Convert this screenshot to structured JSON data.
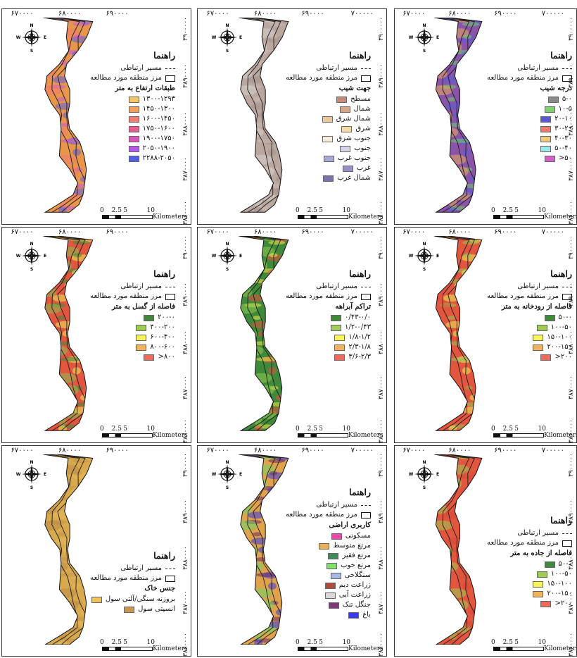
{
  "common": {
    "legend_title": "راهنما",
    "road_label": "مسیر ارتباطی",
    "boundary_label": "مرز منطقه مورد مطالعه",
    "compass": {
      "n": "N",
      "s": "S",
      "e": "E",
      "w": "W"
    },
    "scale": {
      "t0": "0",
      "t1": "2.5",
      "t2": "5",
      "t3": "10",
      "unit": "Kilometers"
    },
    "x_ticks": [
      "۶۷۰۰۰۰",
      "۶۸۰۰۰۰",
      "۶۹۰۰۰۰",
      "۷۰۰۰۰۰"
    ],
    "y_ticks": [
      "۳۹۰۰۰۰۰",
      "۳۸۹۰۰۰۰",
      "۳۸۸۰۰۰۰",
      "۳۸۷۰۰۰۰",
      "۳۸۶۰۰۰۰"
    ]
  },
  "panels": [
    {
      "id": "elevation",
      "subtitle": "طبقات ارتفاع به متر",
      "fill": "#e8964a",
      "accents": [
        "#c85bd6",
        "#5b5fe0",
        "#f07b70"
      ],
      "items": [
        {
          "label": "۱۳۰۰-۱۲۹۳",
          "color": "#f6c567"
        },
        {
          "label": "۱۴۵۰-۱۳۰۰",
          "color": "#f2a15c"
        },
        {
          "label": "۱۶۰۰-۱۴۵۰",
          "color": "#ef7e74"
        },
        {
          "label": "۱۷۵۰-۱۶۰۰",
          "color": "#e55d8f"
        },
        {
          "label": "۱۹۰۰-۱۷۵۰",
          "color": "#d756b8"
        },
        {
          "label": "۲۰۵۰-۱۹۰۰",
          "color": "#b45ce0"
        },
        {
          "label": "۲۲۸۸-۲۰۵۰",
          "color": "#5460e4"
        }
      ]
    },
    {
      "id": "aspect",
      "subtitle": "جهت شیب",
      "fill": "#b9a7a0",
      "accents": [
        "#cdbcb3",
        "#a4918a",
        "#d8cec8"
      ],
      "items": [
        {
          "label": "مسطح",
          "color": "#c8887a"
        },
        {
          "label": "شمال",
          "color": "#d7a68a"
        },
        {
          "label": "شمال شرق",
          "color": "#e9c89a"
        },
        {
          "label": "شرق",
          "color": "#f3dba8"
        },
        {
          "label": "جنوب شرق",
          "color": "#f6ecd8"
        },
        {
          "label": "جنوب",
          "color": "#d8d3e6"
        },
        {
          "label": "جنوب غرب",
          "color": "#a9a9d8"
        },
        {
          "label": "غرب",
          "color": "#9490c8"
        },
        {
          "label": "شمال غرب",
          "color": "#7c70a8"
        }
      ]
    },
    {
      "id": "slope",
      "subtitle": "درجه شیب",
      "fill": "#8a55a8",
      "accents": [
        "#6fcf6a",
        "#5a5fd6",
        "#e8a95a"
      ],
      "items": [
        {
          "label": "۵-۰",
          "color": "#8a8a8a"
        },
        {
          "label": "۱۰-۵",
          "color": "#7ed36a"
        },
        {
          "label": "۲۰-۱۰",
          "color": "#5a58d8"
        },
        {
          "label": "۳۰-۲۰",
          "color": "#ef7a6a"
        },
        {
          "label": "۴۰-۳۰",
          "color": "#f0c87a"
        },
        {
          "label": "۵۰-۴۰",
          "color": "#9be8ef"
        },
        {
          "label": "۵۰<",
          "color": "#d65fc9"
        }
      ]
    },
    {
      "id": "fault",
      "subtitle": "فاصله از گسل به متر",
      "fill": "#e2553e",
      "accents": [
        "#3a8a3a",
        "#e9ef5a",
        "#88c050"
      ],
      "items": [
        {
          "label": "۲۰۰-۰",
          "color": "#3e8a3a"
        },
        {
          "label": "۴۰۰-۲۰۰",
          "color": "#9fcb50"
        },
        {
          "label": "۶۰۰-۴۰۰",
          "color": "#f6f45a"
        },
        {
          "label": "۸۰۰-۶۰۰",
          "color": "#f0b25a"
        },
        {
          "label": "۸۰۰<",
          "color": "#ef6a5a"
        }
      ]
    },
    {
      "id": "drainage",
      "subtitle": "تراکم آبراهه",
      "fill": "#3f8a3a",
      "accents": [
        "#f4e84a",
        "#e35040",
        "#8fc850"
      ],
      "items": [
        {
          "label": "۰/۴۳-۰/۰",
          "color": "#3f8a3a"
        },
        {
          "label": "۱/۲-۰/۴۳",
          "color": "#a3cc5a"
        },
        {
          "label": "۱/۸-۱/۲",
          "color": "#f6f45a"
        },
        {
          "label": "۲/۳-۱/۸",
          "color": "#f0b25a"
        },
        {
          "label": "۳/۶-۲/۳",
          "color": "#ef6a5a"
        }
      ]
    },
    {
      "id": "river",
      "subtitle": "فاصله از رودخانه به متر",
      "fill": "#e2553e",
      "accents": [
        "#8fc850",
        "#e9ef5a",
        "#e2553e"
      ],
      "items": [
        {
          "label": "۵۰-۰",
          "color": "#3e8a3a"
        },
        {
          "label": "۱۰۰-۵۰",
          "color": "#9fcb50"
        },
        {
          "label": "۱۵۰-۱۰۰",
          "color": "#f6f45a"
        },
        {
          "label": "۲۰۰-۱۵۰",
          "color": "#f0b25a"
        },
        {
          "label": "۲۰۰<",
          "color": "#ef6a5a"
        }
      ]
    },
    {
      "id": "soil",
      "subtitle": "جنس خاک",
      "fill": "#d9a94e",
      "accents": [
        "#c0924a",
        "#e6b95a",
        "#b88d45"
      ],
      "items": [
        {
          "label": "بروزنه سنگی/آلتی سول",
          "color": "#f2c25a"
        },
        {
          "label": "انسپتی سول",
          "color": "#c9964a"
        }
      ]
    },
    {
      "id": "landuse",
      "subtitle": "کاربری اراضی",
      "fill": "#e0a24a",
      "accents": [
        "#6a2a6a",
        "#3a3ae0",
        "#6fd66a"
      ],
      "items": [
        {
          "label": "مسکونی",
          "color": "#e84aa8"
        },
        {
          "label": "مرتع متوسط",
          "color": "#e8b05a"
        },
        {
          "label": "مرتع فقیر",
          "color": "#3f8a5a"
        },
        {
          "label": "مرتع خوب",
          "color": "#7fe06a"
        },
        {
          "label": "سنگلاخی",
          "color": "#a8b8e8"
        },
        {
          "label": "زراعت دیم",
          "color": "#b04a3a"
        },
        {
          "label": "زراعت آبی",
          "color": "#d8d8d8"
        },
        {
          "label": "جنگل تنک",
          "color": "#7a3a7a"
        },
        {
          "label": "باغ",
          "color": "#3a3ae8"
        }
      ]
    },
    {
      "id": "roaddist",
      "subtitle": "فاصله از جاده به متر",
      "fill": "#e2553e",
      "accents": [
        "#e25a40",
        "#d44a36",
        "#9fcb50"
      ],
      "items": [
        {
          "label": "۵۰-۰",
          "color": "#3e8a3a"
        },
        {
          "label": "۱۰۰-۵۰",
          "color": "#9fcb50"
        },
        {
          "label": "۱۵۰-۱۰۰",
          "color": "#f6f45a"
        },
        {
          "label": "۲۰۰-۱۵۰",
          "color": "#f0b25a"
        },
        {
          "label": "۲۰۰<",
          "color": "#ef6a5a"
        }
      ]
    }
  ]
}
